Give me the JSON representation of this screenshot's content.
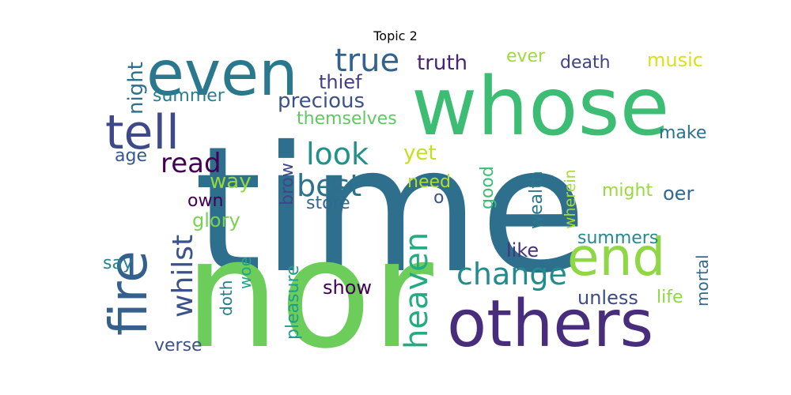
{
  "chart_data": {
    "type": "wordcloud",
    "title": "Topic 2",
    "words": [
      {
        "text": "time",
        "color": "#2e6f8e"
      },
      {
        "text": "nor",
        "color": "#6ccd5a"
      },
      {
        "text": "whose",
        "color": "#3dbc74"
      },
      {
        "text": "even",
        "color": "#2a788e"
      },
      {
        "text": "others",
        "color": "#472d7b"
      },
      {
        "text": "end",
        "color": "#8fd744"
      },
      {
        "text": "fire",
        "color": "#35608d"
      },
      {
        "text": "tell",
        "color": "#3e4989"
      },
      {
        "text": "true",
        "color": "#33638d"
      },
      {
        "text": "heaven",
        "color": "#25ab82"
      },
      {
        "text": "look",
        "color": "#21918c"
      },
      {
        "text": "best",
        "color": "#2c728e"
      },
      {
        "text": "change",
        "color": "#228c8d"
      },
      {
        "text": "whilst",
        "color": "#3b528b"
      },
      {
        "text": "read",
        "color": "#440154"
      },
      {
        "text": "truth",
        "color": "#482475"
      },
      {
        "text": "precious",
        "color": "#3b528b"
      },
      {
        "text": "night",
        "color": "#2e6e8e"
      },
      {
        "text": "thief",
        "color": "#433e85"
      },
      {
        "text": "music",
        "color": "#d8e219"
      },
      {
        "text": "ever",
        "color": "#a0da39"
      },
      {
        "text": "death",
        "color": "#404387"
      },
      {
        "text": "summer",
        "color": "#277f8e"
      },
      {
        "text": "themselves",
        "color": "#5ec962"
      },
      {
        "text": "make",
        "color": "#2d708e"
      },
      {
        "text": "age",
        "color": "#39568c"
      },
      {
        "text": "yet",
        "color": "#c2df23"
      },
      {
        "text": "brow",
        "color": "#3f4788"
      },
      {
        "text": "good",
        "color": "#3dbc74"
      },
      {
        "text": "wealth",
        "color": "#2a788e"
      },
      {
        "text": "wherein",
        "color": "#a5db36"
      },
      {
        "text": "way",
        "color": "#95d840"
      },
      {
        "text": "need",
        "color": "#b5de2b"
      },
      {
        "text": "o",
        "color": "#3b528b"
      },
      {
        "text": "might",
        "color": "#9bd93c"
      },
      {
        "text": "oer",
        "color": "#31688e"
      },
      {
        "text": "own",
        "color": "#440154"
      },
      {
        "text": "store",
        "color": "#31688e"
      },
      {
        "text": "glory",
        "color": "#7ad151"
      },
      {
        "text": "mortal",
        "color": "#31688e"
      },
      {
        "text": "like",
        "color": "#46327e"
      },
      {
        "text": "summers",
        "color": "#23898e"
      },
      {
        "text": "say",
        "color": "#26828e"
      },
      {
        "text": "woe",
        "color": "#21a585"
      },
      {
        "text": "doth",
        "color": "#2a788e"
      },
      {
        "text": "pleasure",
        "color": "#1f9e89"
      },
      {
        "text": "show",
        "color": "#440154"
      },
      {
        "text": "unless",
        "color": "#3e4a89"
      },
      {
        "text": "life",
        "color": "#8fd744"
      },
      {
        "text": "verse",
        "color": "#3b528b"
      }
    ]
  }
}
